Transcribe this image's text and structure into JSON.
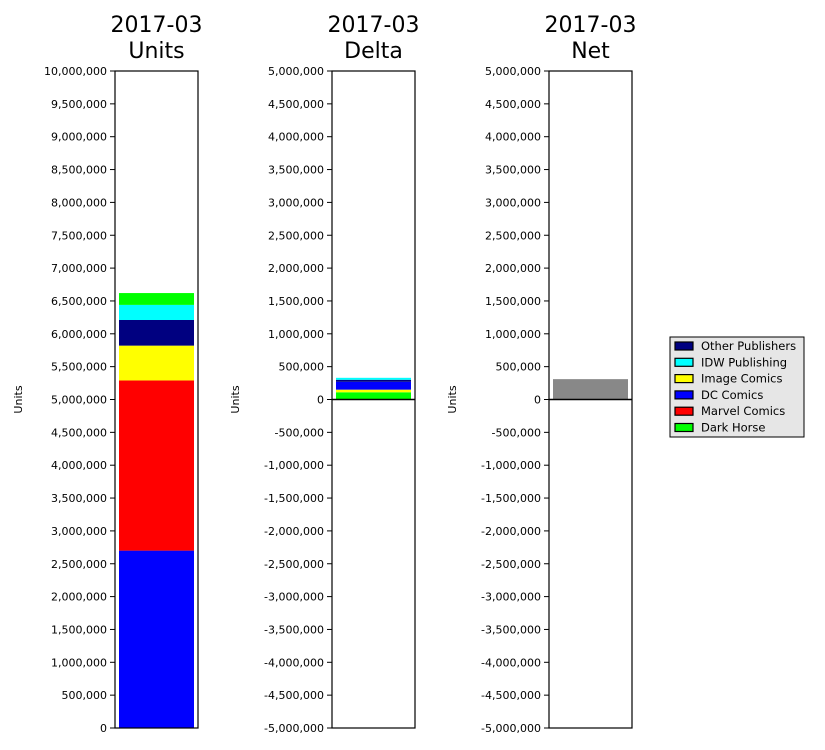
{
  "chart_data": [
    {
      "type": "bar",
      "stacked": true,
      "title": [
        "2017-03",
        "Units"
      ],
      "ylabel": "Units",
      "ylim": [
        0,
        10000000
      ],
      "yticks": [
        {
          "value": 0,
          "label": "0"
        },
        {
          "value": 500000,
          "label": "500,000"
        },
        {
          "value": 1000000,
          "label": "1,000,000"
        },
        {
          "value": 1500000,
          "label": "1,500,000"
        },
        {
          "value": 2000000,
          "label": "2,000,000"
        },
        {
          "value": 2500000,
          "label": "2,500,000"
        },
        {
          "value": 3000000,
          "label": "3,000,000"
        },
        {
          "value": 3500000,
          "label": "3,500,000"
        },
        {
          "value": 4000000,
          "label": "4,000,000"
        },
        {
          "value": 4500000,
          "label": "4,500,000"
        },
        {
          "value": 5000000,
          "label": "5,000,000"
        },
        {
          "value": 5500000,
          "label": "5,500,000"
        },
        {
          "value": 6000000,
          "label": "6,000,000"
        },
        {
          "value": 6500000,
          "label": "6,500,000"
        },
        {
          "value": 7000000,
          "label": "7,000,000"
        },
        {
          "value": 7500000,
          "label": "7,500,000"
        },
        {
          "value": 8000000,
          "label": "8,000,000"
        },
        {
          "value": 8500000,
          "label": "8,500,000"
        },
        {
          "value": 9000000,
          "label": "9,000,000"
        },
        {
          "value": 9500000,
          "label": "9,500,000"
        },
        {
          "value": 10000000,
          "label": "10,000,000"
        }
      ],
      "zero_line": false,
      "series": [
        {
          "name": "DC Comics",
          "value": 2700000,
          "color": "#0000ff"
        },
        {
          "name": "Marvel Comics",
          "value": 2590000,
          "color": "#ff0000"
        },
        {
          "name": "Image Comics",
          "value": 530000,
          "color": "#ffff00"
        },
        {
          "name": "Other Publishers",
          "value": 390000,
          "color": "#000080"
        },
        {
          "name": "IDW Publishing",
          "value": 230000,
          "color": "#00ffff"
        },
        {
          "name": "Dark Horse",
          "value": 180000,
          "color": "#00ff00"
        }
      ]
    },
    {
      "type": "bar",
      "stacked": true,
      "title": [
        "2017-03",
        "Delta"
      ],
      "ylabel": "Units",
      "ylim": [
        -5000000,
        5000000
      ],
      "yticks": [
        {
          "value": -5000000,
          "label": "-5,000,000"
        },
        {
          "value": -4500000,
          "label": "-4,500,000"
        },
        {
          "value": -4000000,
          "label": "-4,000,000"
        },
        {
          "value": -3500000,
          "label": "-3,500,000"
        },
        {
          "value": -3000000,
          "label": "-3,000,000"
        },
        {
          "value": -2500000,
          "label": "-2,500,000"
        },
        {
          "value": -2000000,
          "label": "-2,000,000"
        },
        {
          "value": -1500000,
          "label": "-1,500,000"
        },
        {
          "value": -1000000,
          "label": "-1,000,000"
        },
        {
          "value": -500000,
          "label": "-500,000"
        },
        {
          "value": 0,
          "label": "0"
        },
        {
          "value": 500000,
          "label": "500,000"
        },
        {
          "value": 1000000,
          "label": "1,000,000"
        },
        {
          "value": 1500000,
          "label": "1,500,000"
        },
        {
          "value": 2000000,
          "label": "2,000,000"
        },
        {
          "value": 2500000,
          "label": "2,500,000"
        },
        {
          "value": 3000000,
          "label": "3,000,000"
        },
        {
          "value": 3500000,
          "label": "3,500,000"
        },
        {
          "value": 4000000,
          "label": "4,000,000"
        },
        {
          "value": 4500000,
          "label": "4,500,000"
        },
        {
          "value": 5000000,
          "label": "5,000,000"
        }
      ],
      "zero_line": true,
      "series": [
        {
          "name": "Dark Horse",
          "value": 110000,
          "color": "#00ff00"
        },
        {
          "name": "Image Comics",
          "value": 40000,
          "color": "#ffff00"
        },
        {
          "name": "DC Comics",
          "value": 120000,
          "color": "#0000ff"
        },
        {
          "name": "Other Publishers",
          "value": 30000,
          "color": "#000080"
        },
        {
          "name": "IDW Publishing",
          "value": 30000,
          "color": "#00ffff"
        }
      ]
    },
    {
      "type": "bar",
      "title": [
        "2017-03",
        "Net"
      ],
      "ylabel": "Units",
      "ylim": [
        -5000000,
        5000000
      ],
      "yticks": [
        {
          "value": -5000000,
          "label": "-5,000,000"
        },
        {
          "value": -4500000,
          "label": "-4,500,000"
        },
        {
          "value": -4000000,
          "label": "-4,000,000"
        },
        {
          "value": -3500000,
          "label": "-3,500,000"
        },
        {
          "value": -3000000,
          "label": "-3,000,000"
        },
        {
          "value": -2500000,
          "label": "-2,500,000"
        },
        {
          "value": -2000000,
          "label": "-2,000,000"
        },
        {
          "value": -1500000,
          "label": "-1,500,000"
        },
        {
          "value": -1000000,
          "label": "-1,000,000"
        },
        {
          "value": -500000,
          "label": "-500,000"
        },
        {
          "value": 0,
          "label": "0"
        },
        {
          "value": 500000,
          "label": "500,000"
        },
        {
          "value": 1000000,
          "label": "1,000,000"
        },
        {
          "value": 1500000,
          "label": "1,500,000"
        },
        {
          "value": 2000000,
          "label": "2,000,000"
        },
        {
          "value": 2500000,
          "label": "2,500,000"
        },
        {
          "value": 3000000,
          "label": "3,000,000"
        },
        {
          "value": 3500000,
          "label": "3,500,000"
        },
        {
          "value": 4000000,
          "label": "4,000,000"
        },
        {
          "value": 4500000,
          "label": "4,500,000"
        },
        {
          "value": 5000000,
          "label": "5,000,000"
        }
      ],
      "zero_line": true,
      "series": [
        {
          "value": 310000,
          "color": "#888888"
        }
      ]
    }
  ],
  "legend": {
    "placement": "right",
    "entries": [
      {
        "name": "Other Publishers",
        "color": "#000080"
      },
      {
        "name": "IDW Publishing",
        "color": "#00ffff"
      },
      {
        "name": "Image Comics",
        "color": "#ffff00"
      },
      {
        "name": "DC Comics",
        "color": "#0000ff"
      },
      {
        "name": "Marvel Comics",
        "color": "#ff0000"
      },
      {
        "name": "Dark Horse",
        "color": "#00ff00"
      }
    ]
  }
}
